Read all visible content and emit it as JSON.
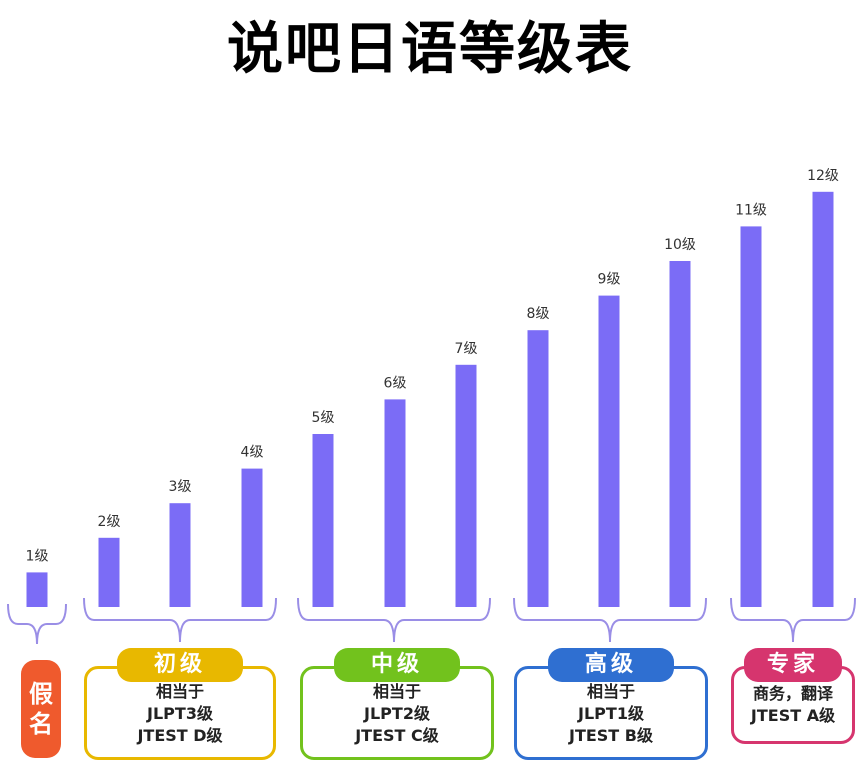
{
  "title": "说吧日语等级表",
  "chart_data": {
    "type": "bar",
    "categories": [
      "1级",
      "2级",
      "3级",
      "4级",
      "5级",
      "6级",
      "7级",
      "8级",
      "9级",
      "10级",
      "11级",
      "12级"
    ],
    "values": [
      1,
      2,
      3,
      4,
      5,
      6,
      7,
      8,
      9,
      10,
      11,
      12
    ],
    "ylim": [
      0,
      12.5
    ],
    "bar_color": "#7b6cf6",
    "grid": false
  },
  "groups": [
    {
      "id": "kana",
      "title": "假名",
      "color": "#ef5a2d",
      "lines": []
    },
    {
      "id": "beginner",
      "title": "初级",
      "color": "#e8b800",
      "lines": [
        "相当于",
        "JLPT3级",
        "JTEST D级"
      ]
    },
    {
      "id": "intermediate",
      "title": "中级",
      "color": "#72c21d",
      "lines": [
        "相当于",
        "JLPT2级",
        "JTEST C级"
      ]
    },
    {
      "id": "advanced",
      "title": "高级",
      "color": "#2f6fd1",
      "lines": [
        "相当于",
        "JLPT1级",
        "JTEST B级"
      ]
    },
    {
      "id": "expert",
      "title": "专家",
      "color": "#d6356e",
      "lines": [
        "商务，翻译",
        "JTEST A级"
      ]
    }
  ],
  "brace_color": "#9a8ee6"
}
